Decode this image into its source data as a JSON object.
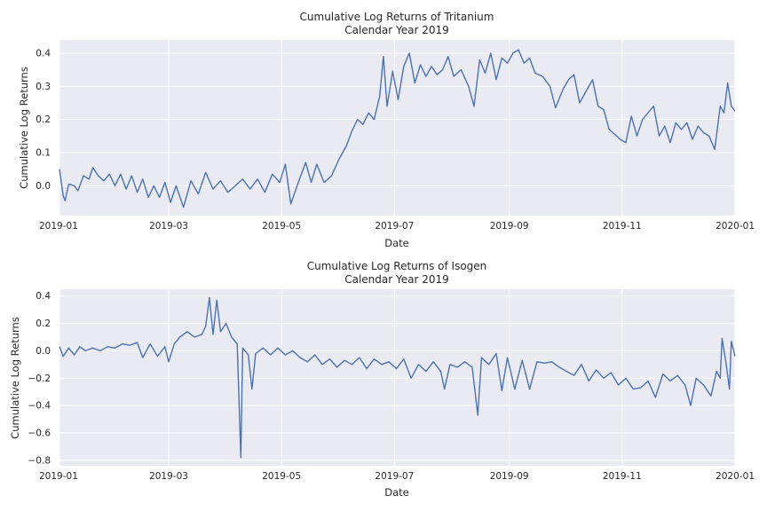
{
  "chart_data": [
    {
      "type": "line",
      "title": "Cumulative Log Returns of Tritanium",
      "subtitle": "Calendar Year 2019",
      "xlabel": "Date",
      "ylabel": "Cumulative Log Returns",
      "x_range": [
        "2019-01-01",
        "2020-01-01"
      ],
      "ylim": [
        -0.09,
        0.44
      ],
      "grid": true,
      "x_ticks": [
        "2019-01",
        "2019-03",
        "2019-05",
        "2019-07",
        "2019-09",
        "2019-11",
        "2020-01"
      ],
      "y_ticks": [
        "0.0",
        "0.1",
        "0.2",
        "0.3",
        "0.4"
      ],
      "y_tick_values": [
        0.0,
        0.1,
        0.2,
        0.3,
        0.4
      ],
      "color": "#4c72b0",
      "series": [
        {
          "points": [
            [
              "2019-01-01",
              0.05
            ],
            [
              "2019-01-03",
              -0.03
            ],
            [
              "2019-01-04",
              -0.045
            ],
            [
              "2019-01-06",
              0.005
            ],
            [
              "2019-01-09",
              0.0
            ],
            [
              "2019-01-11",
              -0.015
            ],
            [
              "2019-01-14",
              0.03
            ],
            [
              "2019-01-17",
              0.02
            ],
            [
              "2019-01-19",
              0.055
            ],
            [
              "2019-01-22",
              0.03
            ],
            [
              "2019-01-25",
              0.015
            ],
            [
              "2019-01-28",
              0.035
            ],
            [
              "2019-01-31",
              0.0
            ],
            [
              "2019-02-03",
              0.035
            ],
            [
              "2019-02-06",
              -0.01
            ],
            [
              "2019-02-09",
              0.03
            ],
            [
              "2019-02-12",
              -0.02
            ],
            [
              "2019-02-15",
              0.02
            ],
            [
              "2019-02-18",
              -0.035
            ],
            [
              "2019-02-21",
              0.0
            ],
            [
              "2019-02-24",
              -0.035
            ],
            [
              "2019-02-27",
              0.01
            ],
            [
              "2019-03-02",
              -0.05
            ],
            [
              "2019-03-05",
              0.0
            ],
            [
              "2019-03-09",
              -0.065
            ],
            [
              "2019-03-13",
              0.015
            ],
            [
              "2019-03-17",
              -0.025
            ],
            [
              "2019-03-21",
              0.04
            ],
            [
              "2019-03-25",
              -0.01
            ],
            [
              "2019-03-29",
              0.015
            ],
            [
              "2019-04-02",
              -0.02
            ],
            [
              "2019-04-06",
              0.0
            ],
            [
              "2019-04-10",
              0.02
            ],
            [
              "2019-04-14",
              -0.01
            ],
            [
              "2019-04-18",
              0.02
            ],
            [
              "2019-04-22",
              -0.02
            ],
            [
              "2019-04-26",
              0.035
            ],
            [
              "2019-04-30",
              0.01
            ],
            [
              "2019-05-03",
              0.065
            ],
            [
              "2019-05-06",
              -0.055
            ],
            [
              "2019-05-10",
              0.01
            ],
            [
              "2019-05-14",
              0.07
            ],
            [
              "2019-05-17",
              0.01
            ],
            [
              "2019-05-20",
              0.065
            ],
            [
              "2019-05-24",
              0.01
            ],
            [
              "2019-05-28",
              0.03
            ],
            [
              "2019-06-01",
              0.08
            ],
            [
              "2019-06-05",
              0.12
            ],
            [
              "2019-06-08",
              0.165
            ],
            [
              "2019-06-11",
              0.2
            ],
            [
              "2019-06-14",
              0.185
            ],
            [
              "2019-06-17",
              0.22
            ],
            [
              "2019-06-20",
              0.2
            ],
            [
              "2019-06-23",
              0.27
            ],
            [
              "2019-06-25",
              0.39
            ],
            [
              "2019-06-27",
              0.24
            ],
            [
              "2019-06-30",
              0.345
            ],
            [
              "2019-07-03",
              0.26
            ],
            [
              "2019-07-06",
              0.36
            ],
            [
              "2019-07-09",
              0.4
            ],
            [
              "2019-07-12",
              0.31
            ],
            [
              "2019-07-15",
              0.365
            ],
            [
              "2019-07-18",
              0.33
            ],
            [
              "2019-07-21",
              0.36
            ],
            [
              "2019-07-24",
              0.335
            ],
            [
              "2019-07-27",
              0.35
            ],
            [
              "2019-07-30",
              0.39
            ],
            [
              "2019-08-02",
              0.33
            ],
            [
              "2019-08-06",
              0.35
            ],
            [
              "2019-08-10",
              0.3
            ],
            [
              "2019-08-13",
              0.24
            ],
            [
              "2019-08-16",
              0.38
            ],
            [
              "2019-08-19",
              0.34
            ],
            [
              "2019-08-22",
              0.4
            ],
            [
              "2019-08-25",
              0.32
            ],
            [
              "2019-08-28",
              0.385
            ],
            [
              "2019-08-31",
              0.37
            ],
            [
              "2019-09-03",
              0.4
            ],
            [
              "2019-09-06",
              0.41
            ],
            [
              "2019-09-09",
              0.37
            ],
            [
              "2019-09-12",
              0.385
            ],
            [
              "2019-09-15",
              0.34
            ],
            [
              "2019-09-19",
              0.33
            ],
            [
              "2019-09-23",
              0.3
            ],
            [
              "2019-09-26",
              0.235
            ],
            [
              "2019-09-30",
              0.29
            ],
            [
              "2019-10-03",
              0.32
            ],
            [
              "2019-10-06",
              0.335
            ],
            [
              "2019-10-09",
              0.25
            ],
            [
              "2019-10-13",
              0.29
            ],
            [
              "2019-10-16",
              0.32
            ],
            [
              "2019-10-19",
              0.24
            ],
            [
              "2019-10-22",
              0.23
            ],
            [
              "2019-10-25",
              0.17
            ],
            [
              "2019-10-28",
              0.155
            ],
            [
              "2019-10-31",
              0.14
            ],
            [
              "2019-11-03",
              0.13
            ],
            [
              "2019-11-06",
              0.21
            ],
            [
              "2019-11-09",
              0.15
            ],
            [
              "2019-11-12",
              0.2
            ],
            [
              "2019-11-15",
              0.22
            ],
            [
              "2019-11-18",
              0.24
            ],
            [
              "2019-11-21",
              0.15
            ],
            [
              "2019-11-24",
              0.18
            ],
            [
              "2019-11-27",
              0.13
            ],
            [
              "2019-11-30",
              0.19
            ],
            [
              "2019-12-03",
              0.17
            ],
            [
              "2019-12-06",
              0.19
            ],
            [
              "2019-12-09",
              0.14
            ],
            [
              "2019-12-12",
              0.18
            ],
            [
              "2019-12-15",
              0.16
            ],
            [
              "2019-12-18",
              0.15
            ],
            [
              "2019-12-21",
              0.11
            ],
            [
              "2019-12-24",
              0.24
            ],
            [
              "2019-12-26",
              0.22
            ],
            [
              "2019-12-28",
              0.31
            ],
            [
              "2019-12-30",
              0.24
            ],
            [
              "2020-01-01",
              0.225
            ]
          ]
        }
      ]
    },
    {
      "type": "line",
      "title": "Cumulative Log Returns of Isogen",
      "subtitle": "Calendar Year 2019",
      "xlabel": "Date",
      "ylabel": "Cumulative Log Returns",
      "x_range": [
        "2019-01-01",
        "2020-01-01"
      ],
      "ylim": [
        -0.84,
        0.45
      ],
      "grid": true,
      "x_ticks": [
        "2019-01",
        "2019-03",
        "2019-05",
        "2019-07",
        "2019-09",
        "2019-11",
        "2020-01"
      ],
      "y_ticks": [
        "0.4",
        "0.2",
        "0.0",
        "−0.2",
        "−0.4",
        "−0.6",
        "−0.8"
      ],
      "y_tick_values": [
        0.4,
        0.2,
        0.0,
        -0.2,
        -0.4,
        -0.6,
        -0.8
      ],
      "color": "#4c72b0",
      "series": [
        {
          "points": [
            [
              "2019-01-01",
              0.03
            ],
            [
              "2019-01-03",
              -0.04
            ],
            [
              "2019-01-06",
              0.02
            ],
            [
              "2019-01-09",
              -0.03
            ],
            [
              "2019-01-12",
              0.03
            ],
            [
              "2019-01-15",
              0.0
            ],
            [
              "2019-01-19",
              0.02
            ],
            [
              "2019-01-23",
              0.0
            ],
            [
              "2019-01-27",
              0.03
            ],
            [
              "2019-01-31",
              0.02
            ],
            [
              "2019-02-04",
              0.05
            ],
            [
              "2019-02-08",
              0.04
            ],
            [
              "2019-02-12",
              0.06
            ],
            [
              "2019-02-15",
              -0.05
            ],
            [
              "2019-02-19",
              0.05
            ],
            [
              "2019-02-23",
              -0.04
            ],
            [
              "2019-02-27",
              0.03
            ],
            [
              "2019-03-01",
              -0.08
            ],
            [
              "2019-03-04",
              0.05
            ],
            [
              "2019-03-07",
              0.1
            ],
            [
              "2019-03-11",
              0.14
            ],
            [
              "2019-03-15",
              0.1
            ],
            [
              "2019-03-19",
              0.12
            ],
            [
              "2019-03-21",
              0.18
            ],
            [
              "2019-03-23",
              0.39
            ],
            [
              "2019-03-25",
              0.12
            ],
            [
              "2019-03-27",
              0.37
            ],
            [
              "2019-03-29",
              0.14
            ],
            [
              "2019-04-01",
              0.2
            ],
            [
              "2019-04-04",
              0.1
            ],
            [
              "2019-04-07",
              0.05
            ],
            [
              "2019-04-09",
              -0.78
            ],
            [
              "2019-04-10",
              0.02
            ],
            [
              "2019-04-13",
              -0.03
            ],
            [
              "2019-04-15",
              -0.28
            ],
            [
              "2019-04-17",
              -0.02
            ],
            [
              "2019-04-21",
              0.02
            ],
            [
              "2019-04-25",
              -0.03
            ],
            [
              "2019-04-29",
              0.02
            ],
            [
              "2019-05-03",
              -0.03
            ],
            [
              "2019-05-07",
              0.0
            ],
            [
              "2019-05-11",
              -0.05
            ],
            [
              "2019-05-15",
              -0.08
            ],
            [
              "2019-05-19",
              -0.03
            ],
            [
              "2019-05-23",
              -0.1
            ],
            [
              "2019-05-27",
              -0.06
            ],
            [
              "2019-05-31",
              -0.12
            ],
            [
              "2019-06-04",
              -0.07
            ],
            [
              "2019-06-08",
              -0.1
            ],
            [
              "2019-06-12",
              -0.05
            ],
            [
              "2019-06-16",
              -0.13
            ],
            [
              "2019-06-20",
              -0.06
            ],
            [
              "2019-06-24",
              -0.1
            ],
            [
              "2019-06-28",
              -0.08
            ],
            [
              "2019-07-02",
              -0.13
            ],
            [
              "2019-07-06",
              -0.06
            ],
            [
              "2019-07-10",
              -0.2
            ],
            [
              "2019-07-14",
              -0.1
            ],
            [
              "2019-07-18",
              -0.15
            ],
            [
              "2019-07-22",
              -0.08
            ],
            [
              "2019-07-26",
              -0.15
            ],
            [
              "2019-07-28",
              -0.28
            ],
            [
              "2019-07-31",
              -0.1
            ],
            [
              "2019-08-04",
              -0.12
            ],
            [
              "2019-08-08",
              -0.08
            ],
            [
              "2019-08-12",
              -0.12
            ],
            [
              "2019-08-15",
              -0.47
            ],
            [
              "2019-08-17",
              -0.05
            ],
            [
              "2019-08-21",
              -0.1
            ],
            [
              "2019-08-25",
              -0.02
            ],
            [
              "2019-08-28",
              -0.29
            ],
            [
              "2019-08-31",
              -0.05
            ],
            [
              "2019-09-04",
              -0.28
            ],
            [
              "2019-09-08",
              -0.07
            ],
            [
              "2019-09-12",
              -0.28
            ],
            [
              "2019-09-16",
              -0.08
            ],
            [
              "2019-09-20",
              -0.09
            ],
            [
              "2019-09-24",
              -0.08
            ],
            [
              "2019-09-28",
              -0.12
            ],
            [
              "2019-10-02",
              -0.15
            ],
            [
              "2019-10-06",
              -0.18
            ],
            [
              "2019-10-10",
              -0.1
            ],
            [
              "2019-10-14",
              -0.22
            ],
            [
              "2019-10-18",
              -0.14
            ],
            [
              "2019-10-22",
              -0.2
            ],
            [
              "2019-10-26",
              -0.16
            ],
            [
              "2019-10-30",
              -0.25
            ],
            [
              "2019-11-03",
              -0.2
            ],
            [
              "2019-11-07",
              -0.28
            ],
            [
              "2019-11-11",
              -0.27
            ],
            [
              "2019-11-15",
              -0.22
            ],
            [
              "2019-11-19",
              -0.34
            ],
            [
              "2019-11-23",
              -0.17
            ],
            [
              "2019-11-27",
              -0.22
            ],
            [
              "2019-12-01",
              -0.18
            ],
            [
              "2019-12-05",
              -0.25
            ],
            [
              "2019-12-08",
              -0.4
            ],
            [
              "2019-12-11",
              -0.2
            ],
            [
              "2019-12-15",
              -0.25
            ],
            [
              "2019-12-19",
              -0.33
            ],
            [
              "2019-12-22",
              -0.15
            ],
            [
              "2019-12-24",
              -0.2
            ],
            [
              "2019-12-25",
              0.09
            ],
            [
              "2019-12-27",
              -0.08
            ],
            [
              "2019-12-29",
              -0.28
            ],
            [
              "2019-12-30",
              0.07
            ],
            [
              "2020-01-01",
              -0.04
            ]
          ]
        }
      ]
    }
  ]
}
